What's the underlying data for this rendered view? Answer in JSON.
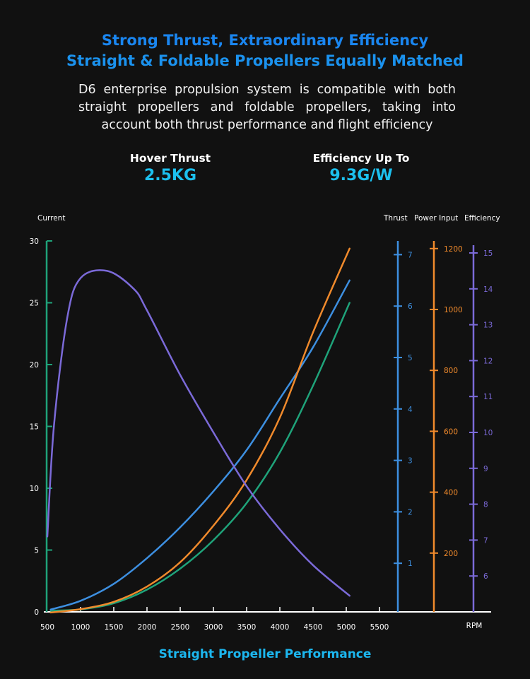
{
  "header": {
    "title_line1": "Strong Thrust, Extraordinary Efficiency",
    "title_line2": "Straight & Foldable Propellers Equally Matched",
    "description": "D6 enterprise propulsion system is compatible with both straight propellers and foldable propellers, taking into account both thrust performance and flight efficiency"
  },
  "stats": [
    {
      "label": "Hover Thrust",
      "value": "2.5KG"
    },
    {
      "label": "Efficiency Up To",
      "value": "9.3G/W"
    }
  ],
  "caption": "Straight Propeller Performance",
  "colors": {
    "background": "#111111",
    "title": "#1a86f0",
    "accent": "#1cc0ee",
    "current": "#1fa37a",
    "thrust": "#3d8fe0",
    "power": "#f08a2c",
    "efficiency": "#7b6ad8"
  },
  "chart_data": {
    "type": "line",
    "title": "Straight Propeller Performance",
    "xlabel": "RPM",
    "x_ticks": [
      500,
      1000,
      1500,
      2000,
      2500,
      3000,
      3500,
      4000,
      4500,
      5000,
      5500
    ],
    "xlim": [
      500,
      5800
    ],
    "grid": false,
    "axes": [
      {
        "key": "current",
        "label": "Current",
        "side": "left",
        "ylim": [
          0,
          30
        ],
        "ticks": [
          0,
          5,
          10,
          15,
          20,
          25,
          30
        ]
      },
      {
        "key": "thrust",
        "label": "Thrust",
        "side": "right",
        "ylim": [
          0,
          7.2
        ],
        "ticks": [
          1,
          2,
          3,
          4,
          5,
          6,
          7
        ]
      },
      {
        "key": "power",
        "label": "Power Input",
        "side": "right",
        "ylim": [
          0,
          1200
        ],
        "ticks": [
          200,
          400,
          600,
          800,
          1000,
          1200
        ]
      },
      {
        "key": "efficiency",
        "label": "Efficiency",
        "side": "right",
        "ylim": [
          5,
          15.2
        ],
        "ticks": [
          6,
          7,
          8,
          9,
          10,
          11,
          12,
          13,
          14,
          15
        ]
      }
    ],
    "series": [
      {
        "axis": "current",
        "x": [
          550,
          1000,
          1500,
          2000,
          2500,
          3000,
          3500,
          4000,
          4500,
          5050
        ],
        "y": [
          0.1,
          0.2,
          0.7,
          1.8,
          3.5,
          5.8,
          8.8,
          12.9,
          18.3,
          25.0
        ]
      },
      {
        "axis": "thrust",
        "x": [
          550,
          1000,
          1500,
          2000,
          2500,
          3000,
          3500,
          4000,
          4500,
          5050
        ],
        "y": [
          0.1,
          0.27,
          0.6,
          1.1,
          1.7,
          2.4,
          3.2,
          4.2,
          5.2,
          6.5
        ]
      },
      {
        "axis": "power",
        "x": [
          550,
          1000,
          1500,
          2000,
          2500,
          3000,
          3500,
          4000,
          4500,
          5050
        ],
        "y": [
          5,
          16,
          40,
          90,
          170,
          290,
          440,
          645,
          925,
          1200
        ]
      },
      {
        "axis": "efficiency",
        "x": [
          500,
          600,
          800,
          1000,
          1400,
          1800,
          2000,
          2500,
          3000,
          3500,
          4000,
          4500,
          5050
        ],
        "y": [
          7.1,
          10.2,
          13.2,
          14.3,
          14.5,
          14.0,
          13.4,
          11.6,
          10.0,
          8.5,
          7.3,
          6.3,
          5.45
        ]
      }
    ]
  }
}
